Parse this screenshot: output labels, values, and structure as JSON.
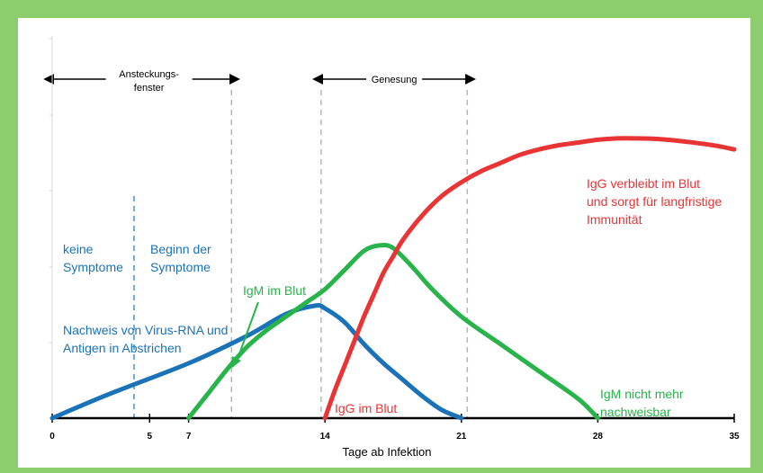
{
  "chart_data": {
    "type": "line",
    "xlabel": "Tage ab Infektion",
    "x_ticks": [
      0,
      5,
      7,
      14,
      21,
      28,
      35
    ],
    "xlim": [
      0,
      35
    ],
    "ylim": [
      0,
      100
    ],
    "grid": false,
    "series": [
      {
        "name": "Virus-RNA und Antigen",
        "color": "#1a73b8",
        "x": [
          0,
          3,
          7,
          10,
          12,
          13.5,
          14,
          15,
          16,
          17,
          18,
          19,
          20,
          21
        ],
        "y": [
          0,
          9,
          20,
          30,
          38,
          41,
          40,
          35,
          27,
          20,
          14,
          8,
          3,
          0
        ]
      },
      {
        "name": "IgM",
        "color": "#28b34b",
        "x": [
          7,
          8,
          9,
          10,
          11,
          12,
          13,
          14,
          15,
          16,
          16.8,
          17.5,
          18.5,
          19.5,
          21,
          23,
          25,
          27,
          28
        ],
        "y": [
          0,
          9,
          18,
          26,
          32,
          37,
          42,
          47,
          54,
          61,
          63,
          62,
          55,
          47,
          37,
          27,
          17,
          7,
          0
        ]
      },
      {
        "name": "IgG",
        "color": "#e83434",
        "x": [
          14,
          14.5,
          15,
          15.5,
          16,
          16.5,
          17,
          17.5,
          18,
          19,
          20,
          21,
          22,
          23,
          24,
          25,
          26,
          27,
          28,
          29,
          30,
          31,
          32,
          33,
          34,
          35
        ],
        "y": [
          0,
          10,
          19,
          28,
          37,
          45,
          53,
          59,
          65,
          74,
          81,
          86,
          90,
          93,
          96,
          98,
          99.5,
          100.5,
          101.5,
          102,
          102,
          101.8,
          101.2,
          100.4,
          99.4,
          98
        ]
      }
    ],
    "phases": [
      {
        "label_line1": "Ansteckungs-",
        "label_line2": "fenster",
        "from": 0,
        "to": 9.2
      },
      {
        "label_line1": "Genesung",
        "label_line2": "",
        "from": 13.8,
        "to": 21.3
      }
    ],
    "vertical_markers": [
      {
        "x": 4.2,
        "style": "dashed",
        "color": "#4a90c4"
      },
      {
        "x": 9.2,
        "style": "dashed",
        "color": "#b8b8b8"
      },
      {
        "x": 13.8,
        "style": "dashed",
        "color": "#b8b8b8"
      },
      {
        "x": 21.3,
        "style": "dashed",
        "color": "#b8b8b8"
      }
    ],
    "annotations": {
      "no_symptoms_1": "keine",
      "no_symptoms_2": "Symptome",
      "onset_1": "Beginn der",
      "onset_2": "Symptome",
      "virus_1": "Nachweis von Virus-RNA und",
      "virus_2": "Antigen in Abstrichen",
      "igm_blood": "IgM im Blut",
      "igg_blood": "IgG im Blut",
      "igg_long_1": "IgG verbleibt im Blut",
      "igg_long_2": "und sorgt für langfristige",
      "igg_long_3": "Immunität",
      "igm_gone_1": "IgM nicht mehr",
      "igm_gone_2": "nachweisbar"
    },
    "colors": {
      "frame": "#8ccd6e",
      "blue_text": "#1a73b8",
      "green_text": "#28b34b",
      "red_text": "#e83434"
    }
  }
}
